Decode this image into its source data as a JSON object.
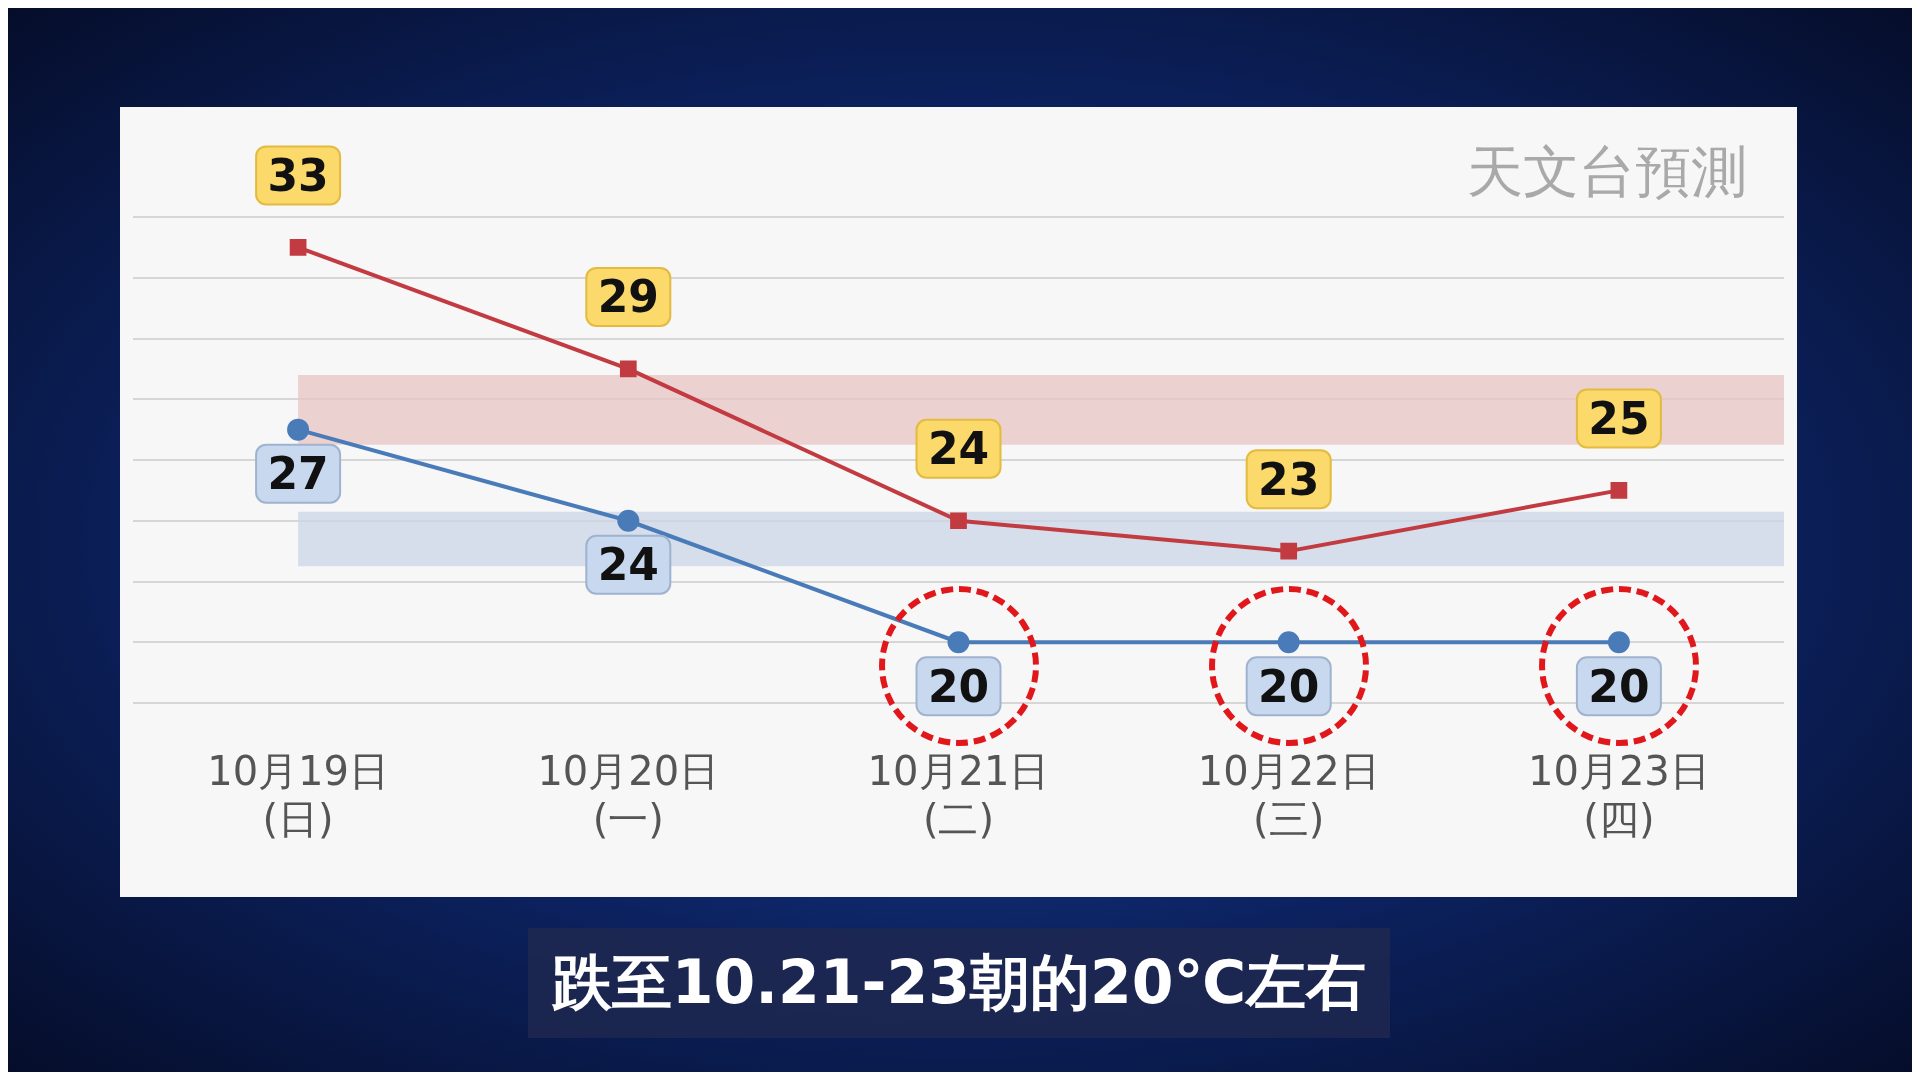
{
  "chart_data": {
    "type": "line",
    "categories": [
      "10月19日\n(日)",
      "10月20日\n(一)",
      "10月21日\n(二)",
      "10月22日\n(三)",
      "10月23日\n(四)"
    ],
    "series": [
      {
        "color": "#c23b40",
        "values": [
          33,
          29,
          24,
          23,
          25
        ],
        "marker": "square"
      },
      {
        "color": "#4a7bb9",
        "values": [
          27,
          24,
          20,
          20,
          20
        ],
        "marker": "circle"
      }
    ],
    "yticks": [
      {
        "value": 18,
        "label": null
      },
      {
        "value": 20,
        "label": null
      },
      {
        "value": 22,
        "label": null
      },
      {
        "value": 24,
        "label": null
      },
      {
        "value": 26,
        "label": null
      },
      {
        "value": 28,
        "label": null
      },
      {
        "value": 30,
        "label": null
      },
      {
        "value": 32,
        "label": null
      },
      {
        "value": 34,
        "label": null
      }
    ],
    "tick_labels": "x",
    "grid": "y",
    "data_labels": true,
    "legend": false,
    "bands": [
      {
        "axis": "y",
        "from": 26.5,
        "to": 28.8,
        "color": "#e8c4c4"
      },
      {
        "axis": "y",
        "from": 22.5,
        "to": 24.3,
        "color": "#c9d6e6"
      }
    ],
    "annotations": [
      "天文台預測",
      "跌至10.21-23朝的20℃左右"
    ]
  }
}
